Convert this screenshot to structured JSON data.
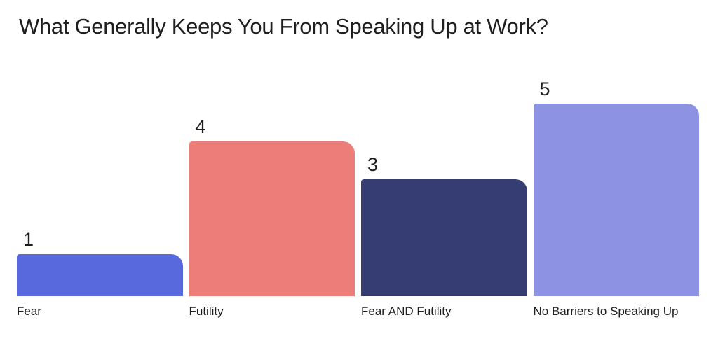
{
  "title": "What Generally Keeps You From Speaking Up at Work?",
  "chart_data": {
    "type": "bar",
    "title": "What Generally Keeps You From Speaking Up at Work?",
    "categories": [
      "Fear",
      "Futility",
      "Fear AND Futility",
      "No Barriers to Speaking Up"
    ],
    "values": [
      1,
      4,
      3,
      5
    ],
    "colors": [
      "#5868DD",
      "#EC7D79",
      "#353D72",
      "#8E92E2"
    ],
    "xlabel": "",
    "ylabel": "",
    "ylim": [
      0,
      5
    ],
    "grid": false,
    "legend": false,
    "value_labels": "above-bar-left",
    "background": "#FFFFFF",
    "text_color": "#1F1F1F"
  }
}
